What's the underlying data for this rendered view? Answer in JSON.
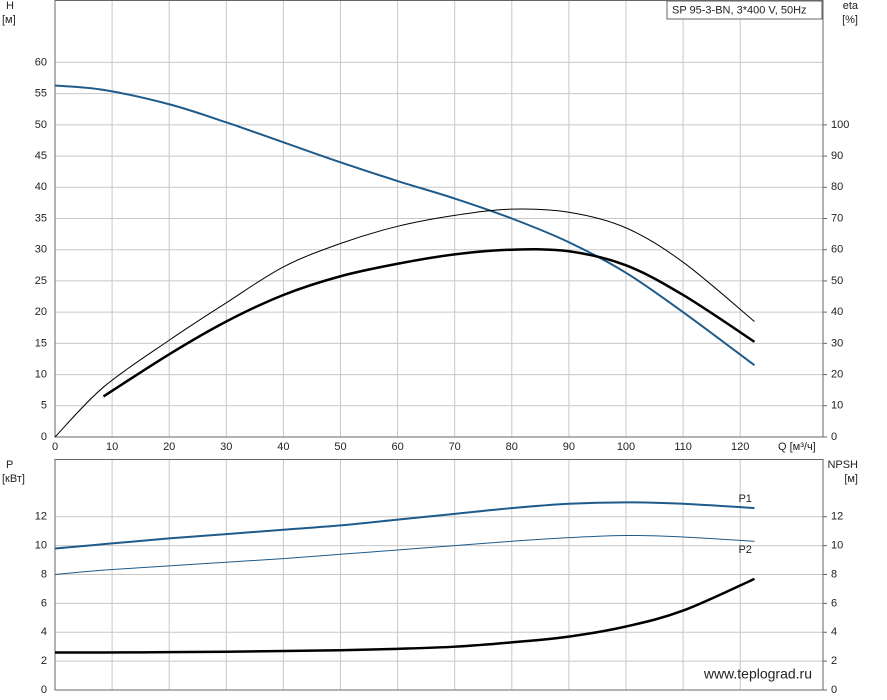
{
  "chart_data": [
    {
      "type": "line",
      "title": "SP 95-3-BN, 3*400 V, 50Hz",
      "ylabel": [
        "H",
        "[м]"
      ],
      "y2label": [
        "eta",
        "[%]"
      ],
      "xlabel": "Q [м³/ч]",
      "x": [
        0,
        8.5,
        20,
        30,
        40,
        50,
        60,
        70,
        80,
        90,
        100,
        110,
        122.5
      ],
      "xlim": [
        0,
        134.5
      ],
      "xticks": [
        0,
        10,
        20,
        30,
        40,
        50,
        60,
        70,
        80,
        90,
        100,
        110,
        120
      ],
      "ylim": [
        0,
        70
      ],
      "yticks": [
        0,
        5,
        10,
        15,
        20,
        25,
        30,
        35,
        40,
        45,
        50,
        55,
        60
      ],
      "y2lim": [
        0,
        140
      ],
      "y2ticks": [
        0,
        10,
        20,
        30,
        40,
        50,
        60,
        70,
        80,
        90,
        100
      ],
      "grid": true,
      "series": [
        {
          "color": "#1f5b8a",
          "line_width": 2,
          "values": [
            56.3,
            55.6,
            53.3,
            50.4,
            47.2,
            44.0,
            41.0,
            38.2,
            35.0,
            31.2,
            26.3,
            20.0,
            11.5
          ]
        },
        {
          "color": "#000000",
          "line_width": 1,
          "axis": "y2",
          "values": [
            0,
            16,
            31,
            43,
            54.5,
            62,
            67.5,
            71,
            73,
            72,
            67,
            56,
            37
          ]
        },
        {
          "color": "#000000",
          "line_width": 2.5,
          "axis": "y2",
          "values": [
            null,
            13,
            26.5,
            37,
            45.5,
            51.5,
            55.5,
            58.5,
            60,
            59.5,
            55,
            45.5,
            30.5
          ]
        }
      ]
    },
    {
      "type": "line",
      "ylabel": [
        "P",
        "[кВт]"
      ],
      "y2label": [
        "NPSH",
        "[м]"
      ],
      "watermark": "www.teplograd.ru",
      "x": [
        0,
        8.5,
        20,
        30,
        40,
        50,
        60,
        70,
        80,
        90,
        100,
        110,
        122.5
      ],
      "xlim": [
        0,
        134.5
      ],
      "ylim": [
        0,
        16
      ],
      "yticks": [
        0,
        2,
        4,
        6,
        8,
        10,
        12
      ],
      "y2lim": [
        0,
        16
      ],
      "y2ticks": [
        0,
        2,
        4,
        6,
        8,
        10,
        12
      ],
      "grid": true,
      "series": [
        {
          "name": "P1",
          "color": "#1f5b8a",
          "line_width": 2,
          "values": [
            9.8,
            10.1,
            10.5,
            10.8,
            11.1,
            11.4,
            11.8,
            12.2,
            12.6,
            12.9,
            13.0,
            12.9,
            12.6
          ]
        },
        {
          "name": "P2",
          "color": "#1f5b8a",
          "line_width": 1,
          "values": [
            8.0,
            8.3,
            8.6,
            8.85,
            9.1,
            9.4,
            9.7,
            10.0,
            10.3,
            10.55,
            10.7,
            10.6,
            10.3
          ]
        },
        {
          "color": "#000000",
          "line_width": 2.5,
          "axis": "y2",
          "values": [
            2.6,
            2.6,
            2.62,
            2.65,
            2.7,
            2.75,
            2.85,
            3.0,
            3.3,
            3.7,
            4.4,
            5.5,
            7.7
          ]
        }
      ]
    }
  ]
}
